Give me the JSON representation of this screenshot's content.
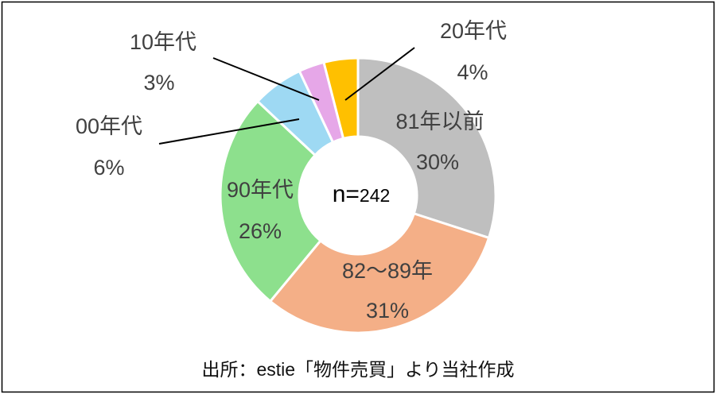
{
  "chart_data": {
    "type": "pie",
    "donut": true,
    "center_label": {
      "prefix": "n=",
      "value": "242"
    },
    "slices": [
      {
        "label": "81年以前",
        "value": 30,
        "value_label": "30%",
        "color": "#BFBFBF"
      },
      {
        "label": "82～89年",
        "value": 31,
        "value_label": "31%",
        "color": "#F4AF87"
      },
      {
        "label": "90年代",
        "value": 26,
        "value_label": "26%",
        "color": "#8DE08D"
      },
      {
        "label": "00年代",
        "value": 6,
        "value_label": "6%",
        "color": "#9ED9F3"
      },
      {
        "label": "10年代",
        "value": 3,
        "value_label": "3%",
        "color": "#E6A7E8"
      },
      {
        "label": "20年代",
        "value": 4,
        "value_label": "4%",
        "color": "#FFC000"
      }
    ]
  },
  "footer": {
    "source": "出所：estie「物件売買」より当社作成"
  }
}
